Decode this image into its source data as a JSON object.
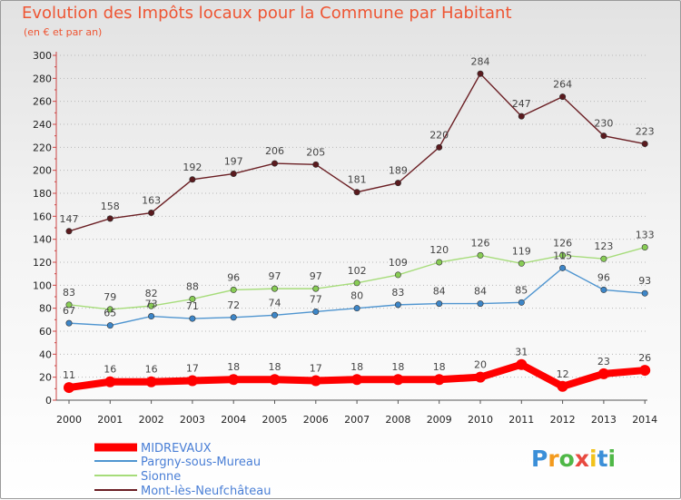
{
  "header": {
    "title": "Evolution des Impôts locaux pour la Commune par Habitant",
    "subtitle": "(en € et par an)"
  },
  "logo": {
    "text": "Proxiti",
    "colors": [
      "#3b8fd8",
      "#f39a1d",
      "#4fb847",
      "#e8493f",
      "#f2c21b",
      "#3b8fd8",
      "#4fb847"
    ]
  },
  "chart_data": {
    "type": "line",
    "title": "Evolution des Impôts locaux pour la Commune par Habitant",
    "subtitle": "(en € et par an)",
    "xlabel": "",
    "ylabel": "",
    "x": [
      "2000",
      "2001",
      "2002",
      "2003",
      "2004",
      "2005",
      "2006",
      "2007",
      "2008",
      "2009",
      "2010",
      "2011",
      "2012",
      "2013",
      "2014"
    ],
    "ylim": [
      0,
      300
    ],
    "yticks": [
      0,
      20,
      40,
      60,
      80,
      100,
      120,
      140,
      160,
      180,
      200,
      220,
      240,
      260,
      280,
      300
    ],
    "grid": "horizontal-dotted",
    "legend_position": "bottom-left",
    "series": [
      {
        "name": "MIDREVAUX",
        "color": "#ff0000",
        "bold": true,
        "values": [
          11,
          16,
          16,
          17,
          18,
          18,
          17,
          18,
          18,
          18,
          20,
          31,
          12,
          23,
          26
        ]
      },
      {
        "name": "Pargny-sous-Mureau",
        "color": "#4f95d0",
        "marker": "#3d86c8",
        "values": [
          67,
          65,
          73,
          71,
          72,
          74,
          77,
          80,
          83,
          84,
          84,
          85,
          115,
          96,
          93
        ],
        "labels": [
          "67",
          "65",
          "73",
          "71",
          "72",
          "74",
          "77",
          "80",
          "83",
          "84",
          "84",
          "85",
          "115",
          "96",
          "93"
        ]
      },
      {
        "name": "Sionne",
        "color": "#a6dc7a",
        "marker": "#88cc55",
        "values": [
          83,
          79,
          82,
          88,
          96,
          97,
          97,
          102,
          109,
          120,
          126,
          119,
          126,
          123,
          133
        ]
      },
      {
        "name": "Mont-lès-Neufchâteau",
        "color": "#6b1f24",
        "marker": "#5a1a1e",
        "values": [
          147,
          158,
          163,
          192,
          197,
          206,
          205,
          181,
          189,
          220,
          284,
          247,
          264,
          230,
          223
        ]
      }
    ]
  }
}
